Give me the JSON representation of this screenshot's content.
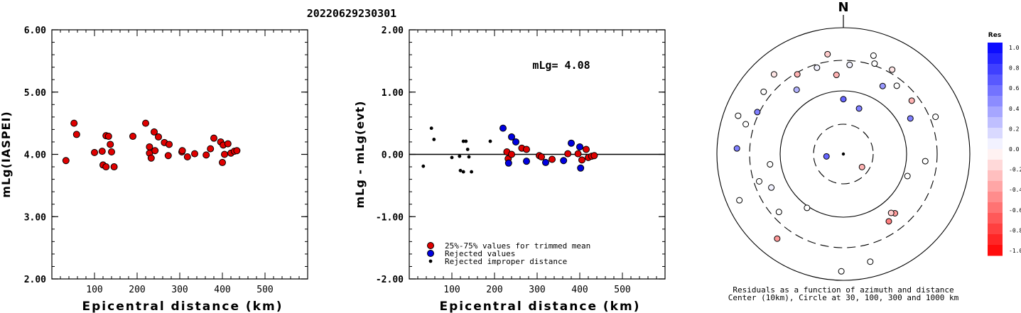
{
  "title": "20220629230301",
  "chart_data": [
    {
      "type": "scatter",
      "xlabel": "Epicentral distance (km)",
      "ylabel": "mLg(IASPEI)",
      "xlim": [
        0,
        600
      ],
      "ylim": [
        2.0,
        6.0
      ],
      "x_ticks": [
        "100",
        "200",
        "300",
        "400",
        "500"
      ],
      "y_ticks": [
        "2.00",
        "3.00",
        "4.00",
        "5.00",
        "6.00"
      ],
      "marker_color": "#e00000",
      "points": [
        [
          33,
          3.9
        ],
        [
          52,
          4.5
        ],
        [
          58,
          4.32
        ],
        [
          100,
          4.03
        ],
        [
          118,
          4.05
        ],
        [
          120,
          3.83
        ],
        [
          127,
          4.3
        ],
        [
          133,
          4.29
        ],
        [
          127,
          3.8
        ],
        [
          137,
          4.16
        ],
        [
          140,
          4.04
        ],
        [
          146,
          3.8
        ],
        [
          190,
          4.29
        ],
        [
          220,
          4.5
        ],
        [
          229,
          4.12
        ],
        [
          229,
          4.02
        ],
        [
          233,
          3.94
        ],
        [
          240,
          4.36
        ],
        [
          242,
          4.06
        ],
        [
          250,
          4.28
        ],
        [
          264,
          4.19
        ],
        [
          273,
          3.98
        ],
        [
          275,
          4.16
        ],
        [
          305,
          4.04
        ],
        [
          306,
          4.06
        ],
        [
          318,
          3.96
        ],
        [
          335,
          4.01
        ],
        [
          362,
          3.99
        ],
        [
          372,
          4.09
        ],
        [
          380,
          4.26
        ],
        [
          396,
          4.2
        ],
        [
          400,
          3.87
        ],
        [
          402,
          4.15
        ],
        [
          405,
          4.0
        ],
        [
          413,
          4.17
        ],
        [
          420,
          4.02
        ],
        [
          428,
          4.05
        ],
        [
          434,
          4.06
        ]
      ]
    },
    {
      "type": "scatter",
      "xlabel": "Epicentral distance (km)",
      "ylabel": "mLg - mLg(evt)",
      "xlim": [
        0,
        600
      ],
      "ylim": [
        -2.0,
        2.0
      ],
      "x_ticks": [
        "100",
        "200",
        "300",
        "400",
        "500"
      ],
      "y_ticks": [
        "-2.00",
        "-1.00",
        "0.00",
        "1.00",
        "2.00"
      ],
      "annotation": "mLg= 4.08",
      "legend": [
        "25%-75% values for trimmed mean",
        "Rejected values",
        "Rejected improper distance"
      ],
      "legend_colors": [
        "#e00000",
        "#0000e0",
        "#000000"
      ],
      "series": [
        {
          "name": "25%-75% values for trimmed mean",
          "points": [
            [
              229,
              0.04
            ],
            [
              232,
              -0.07
            ],
            [
              240,
              0.0
            ],
            [
              264,
              0.1
            ],
            [
              275,
              0.08
            ],
            [
              305,
              -0.02
            ],
            [
              310,
              -0.04
            ],
            [
              335,
              -0.08
            ],
            [
              372,
              0.01
            ],
            [
              396,
              0.01
            ],
            [
              405,
              -0.09
            ],
            [
              415,
              0.08
            ],
            [
              420,
              -0.05
            ],
            [
              428,
              -0.03
            ],
            [
              434,
              -0.02
            ]
          ]
        },
        {
          "name": "Rejected values",
          "points": [
            [
              220,
              0.42
            ],
            [
              233,
              -0.14
            ],
            [
              240,
              0.28
            ],
            [
              250,
              0.2
            ],
            [
              275,
              -0.11
            ],
            [
              320,
              -0.13
            ],
            [
              362,
              -0.1
            ],
            [
              380,
              0.18
            ],
            [
              400,
              0.12
            ],
            [
              402,
              -0.22
            ]
          ]
        },
        {
          "name": "Rejected improper distance",
          "points": [
            [
              33,
              -0.19
            ],
            [
              52,
              0.42
            ],
            [
              58,
              0.24
            ],
            [
              100,
              -0.05
            ],
            [
              118,
              -0.03
            ],
            [
              120,
              -0.26
            ],
            [
              127,
              0.21
            ],
            [
              127,
              -0.28
            ],
            [
              133,
              0.21
            ],
            [
              137,
              0.08
            ],
            [
              140,
              -0.04
            ],
            [
              146,
              -0.28
            ],
            [
              190,
              0.21
            ]
          ]
        }
      ]
    },
    {
      "type": "polar-scatter",
      "north_label": "N",
      "caption_line1": "Residuals as a function of azimuth and distance",
      "caption_line2": "Center (10km), Circle at 30, 100, 300 and 1000 km",
      "colorbar_title": "Res",
      "colorbar_ticks": [
        "1.0",
        "0.8",
        "0.6",
        "0.4",
        "0.2",
        "0.0",
        "-0.2",
        "-0.4",
        "-0.6",
        "-0.8",
        "-1.0"
      ],
      "rings_km": [
        30,
        100,
        300,
        1000
      ],
      "stations": [
        {
          "az": 0,
          "dist_km": 250,
          "res": 0.6
        },
        {
          "az": 4,
          "dist_km": 590,
          "res": 0.05
        },
        {
          "az": 17,
          "dist_km": 740,
          "res": 0.0
        },
        {
          "az": 19,
          "dist_km": 660,
          "res": 0.0
        },
        {
          "az": 19,
          "dist_km": 210,
          "res": 0.5
        },
        {
          "az": 30,
          "dist_km": 680,
          "res": -0.1
        },
        {
          "az": 30,
          "dist_km": 470,
          "res": 0.4
        },
        {
          "az": 38,
          "dist_km": 560,
          "res": 0.0
        },
        {
          "az": 52,
          "dist_km": 560,
          "res": -0.3
        },
        {
          "az": 62,
          "dist_km": 440,
          "res": 0.5
        },
        {
          "az": 68,
          "dist_km": 700,
          "res": 0.0
        },
        {
          "az": 95,
          "dist_km": 510,
          "res": 0.0
        },
        {
          "az": 109,
          "dist_km": 350,
          "res": 0.0
        },
        {
          "az": 125,
          "dist_km": 75,
          "res": -0.3
        },
        {
          "az": 139,
          "dist_km": 470,
          "res": -0.4
        },
        {
          "az": 141,
          "dist_km": 440,
          "res": -0.2
        },
        {
          "az": 146,
          "dist_km": 500,
          "res": -0.5
        },
        {
          "az": 166,
          "dist_km": 830,
          "res": 0.0
        },
        {
          "az": 181,
          "dist_km": 900,
          "res": 0.0
        },
        {
          "az": 214,
          "dist_km": 320,
          "res": 0.0
        },
        {
          "az": 218,
          "dist_km": 790,
          "res": -0.4
        },
        {
          "az": 228,
          "dist_km": 560,
          "res": 0.0
        },
        {
          "az": 246,
          "dist_km": 860,
          "res": 0.0
        },
        {
          "az": 245,
          "dist_km": 480,
          "res": 0.05
        },
        {
          "az": 252,
          "dist_km": 580,
          "res": 0.0
        },
        {
          "az": 262,
          "dist_km": 55,
          "res": 0.6
        },
        {
          "az": 262,
          "dist_km": 420,
          "res": 0.0
        },
        {
          "az": 273,
          "dist_km": 780,
          "res": 0.5
        },
        {
          "az": 287,
          "dist_km": 730,
          "res": 0.0
        },
        {
          "az": 290,
          "dist_km": 840,
          "res": 0.0
        },
        {
          "az": 296,
          "dist_km": 660,
          "res": 0.5
        },
        {
          "az": 308,
          "dist_km": 720,
          "res": 0.0
        },
        {
          "az": 319,
          "dist_km": 770,
          "res": -0.1
        },
        {
          "az": 324,
          "dist_km": 480,
          "res": 0.3
        },
        {
          "az": 330,
          "dist_km": 620,
          "res": -0.3
        },
        {
          "az": 351,
          "dist_km": 720,
          "res": -0.2
        },
        {
          "az": 343,
          "dist_km": 600,
          "res": 0.05
        },
        {
          "az": 355,
          "dist_km": 480,
          "res": -0.3
        }
      ]
    }
  ]
}
